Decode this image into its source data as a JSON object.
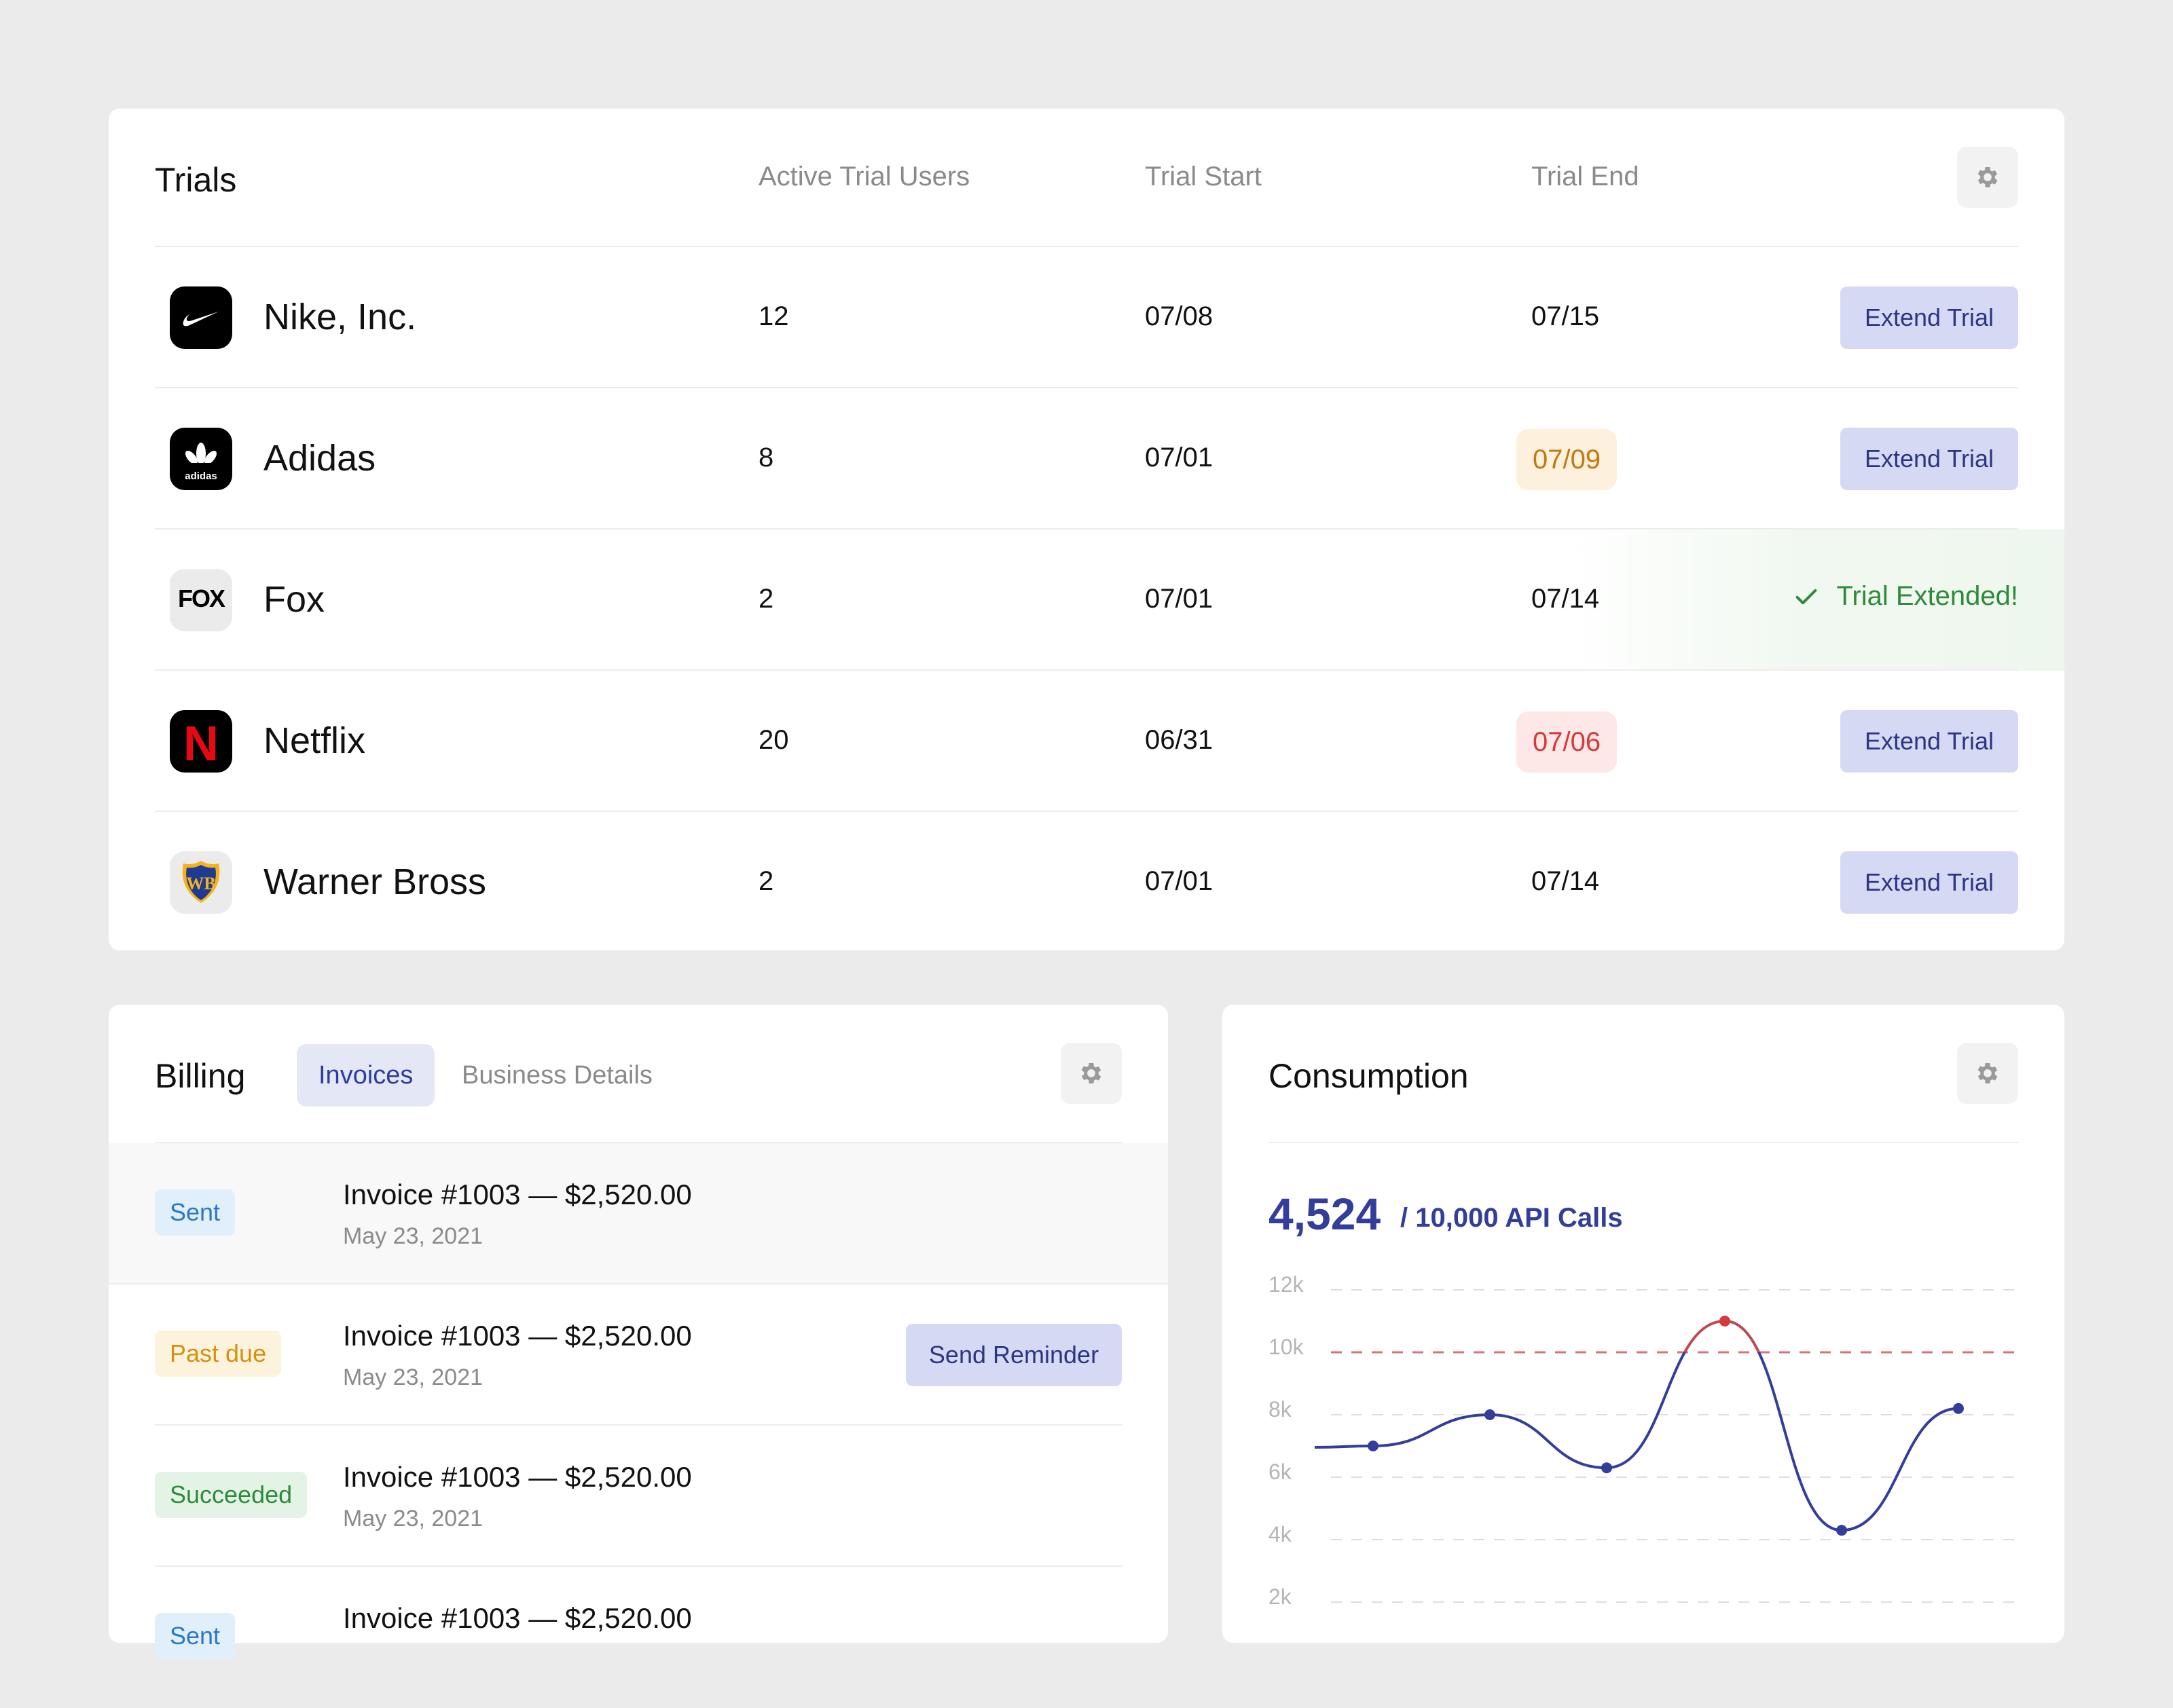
{
  "trials": {
    "title": "Trials",
    "columns": {
      "users": "Active Trial Users",
      "start": "Trial Start",
      "end": "Trial End"
    },
    "rows": [
      {
        "company": "Nike, Inc.",
        "users": "12",
        "start": "07/08",
        "end": "07/15",
        "end_status": "normal",
        "action": "Extend Trial",
        "logo": "nike-logo"
      },
      {
        "company": "Adidas",
        "users": "8",
        "start": "07/01",
        "end": "07/09",
        "end_status": "warning",
        "action": "Extend Trial",
        "logo": "adidas-logo"
      },
      {
        "company": "Fox",
        "users": "2",
        "start": "07/01",
        "end": "07/14",
        "end_status": "normal",
        "action": "Trial Extended!",
        "logo": "fox-logo"
      },
      {
        "company": "Netflix",
        "users": "20",
        "start": "06/31",
        "end": "07/06",
        "end_status": "danger",
        "action": "Extend Trial",
        "logo": "netflix-logo"
      },
      {
        "company": "Warner Bross",
        "users": "2",
        "start": "07/01",
        "end": "07/14",
        "end_status": "normal",
        "action": "Extend Trial",
        "logo": "warner-bros-logo"
      }
    ],
    "logo_text": {
      "adidas": "adidas",
      "fox": "FOX",
      "netflix": "N",
      "warner": "WB"
    }
  },
  "billing": {
    "title": "Billing",
    "tabs": [
      "Invoices",
      "Business Details"
    ],
    "invoices": [
      {
        "status": "Sent",
        "title": "Invoice #1003 — $2,520.00",
        "date": "May 23, 2021"
      },
      {
        "status": "Past due",
        "title": "Invoice #1003 — $2,520.00",
        "date": "May 23, 2021",
        "action": "Send Reminder"
      },
      {
        "status": "Succeeded",
        "title": "Invoice #1003 — $2,520.00",
        "date": "May 23, 2021"
      },
      {
        "status": "Sent",
        "title": "Invoice #1003 — $2,520.00",
        "date": ""
      }
    ]
  },
  "consumption": {
    "title": "Consumption",
    "value": "4,524",
    "limit_label": "/ 10,000 API Calls",
    "chart_data": {
      "type": "line",
      "ylabels": [
        "12k",
        "10k",
        "8k",
        "6k",
        "4k",
        "2k"
      ],
      "ylim": [
        2000,
        12000
      ],
      "threshold": 10000,
      "points": [
        7000,
        8000,
        6300,
        11000,
        4300,
        8200
      ],
      "line_color": "#333e9c",
      "threshold_color": "#d9727a",
      "peak_color": "#d63a3a",
      "grid": true
    }
  },
  "colors": {
    "accent": "#2c3582",
    "button_bg": "#d6d9f4",
    "success": "#2e8b3a",
    "warning": "#c07a10",
    "danger": "#d63a3a"
  }
}
